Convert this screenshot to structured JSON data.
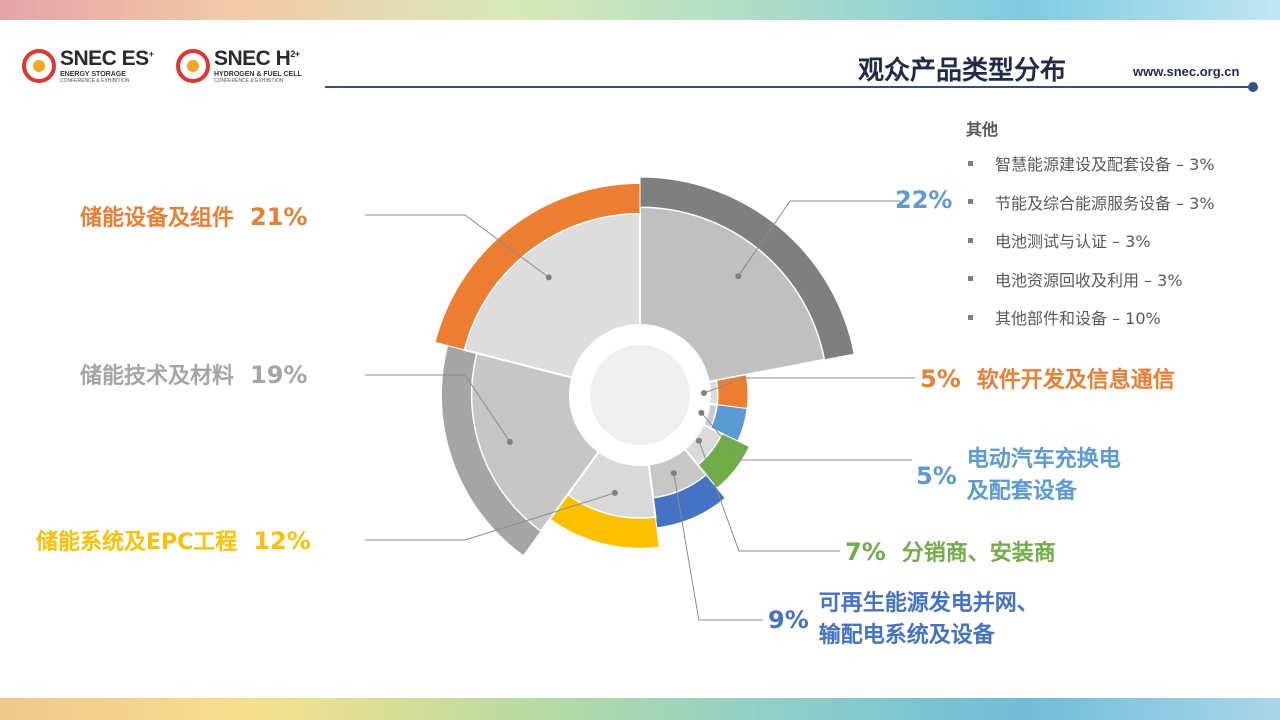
{
  "header": {
    "title": "观众产品类型分布",
    "website": "www.snec.org.cn",
    "logos": [
      {
        "main": "SNEC ES",
        "sup": "+",
        "sub": "ENERGY STORAGE",
        "sub2": "CONFERENCE & EXHIBITION"
      },
      {
        "main": "SNEC H",
        "sup": "2+",
        "sub": "HYDROGEN & FUEL CELL",
        "sub2": "CONFERENCE & EXHIBITION"
      }
    ]
  },
  "colors": {
    "orange": "#ED7D31",
    "gray_dark": "#7F7F7F",
    "gray_mid": "#A5A5A5",
    "yellow": "#FFC000",
    "blue": "#4472C4",
    "light_blue": "#5B9BD5",
    "green": "#70AD47",
    "title_navy": "#1F2A4D"
  },
  "chart_data": {
    "type": "pie",
    "variant": "nightingale-rose with outer rings",
    "slices": [
      {
        "label": "其他",
        "value": 22,
        "value_label": "22%",
        "color": "#7F7F7F",
        "label_color": "#5B9BD5"
      },
      {
        "label": "软件开发及信息通信",
        "value": 5,
        "value_label": "5%",
        "color": "#ED7D31",
        "label_color": "#ED7D31"
      },
      {
        "label": "电动汽车充换电及配套设备",
        "label_lines": [
          "电动汽车充换电",
          "及配套设备"
        ],
        "value": 5,
        "value_label": "5%",
        "color": "#5B9BD5",
        "label_color": "#5B9BD5"
      },
      {
        "label": "分销商、安装商",
        "value": 7,
        "value_label": "7%",
        "color": "#70AD47",
        "label_color": "#70AD47"
      },
      {
        "label": "可再生能源发电并网、输配电系统及设备",
        "label_lines": [
          "可再生能源发电并网、",
          "输配电系统及设备"
        ],
        "value": 9,
        "value_label": "9%",
        "color": "#4472C4",
        "label_color": "#4472C4"
      },
      {
        "label": "储能系统及EPC工程",
        "value": 12,
        "value_label": "12%",
        "color": "#FFC000",
        "label_color": "#FFC000"
      },
      {
        "label": "储能技术及材料",
        "value": 19,
        "value_label": "19%",
        "color": "#A5A5A5",
        "label_color": "#A5A5A5"
      },
      {
        "label": "储能设备及组件",
        "value": 21,
        "value_label": "21%",
        "color": "#ED7D31",
        "label_color": "#ED7D31"
      }
    ],
    "other_breakdown": {
      "title": "其他",
      "items": [
        "智慧能源建设及配套设备 – 3%",
        "节能及综合能源服务设备 – 3%",
        "电池测试与认证 – 3%",
        "电池资源回收及利用 – 3%",
        "其他部件和设备 – 10%"
      ]
    }
  }
}
